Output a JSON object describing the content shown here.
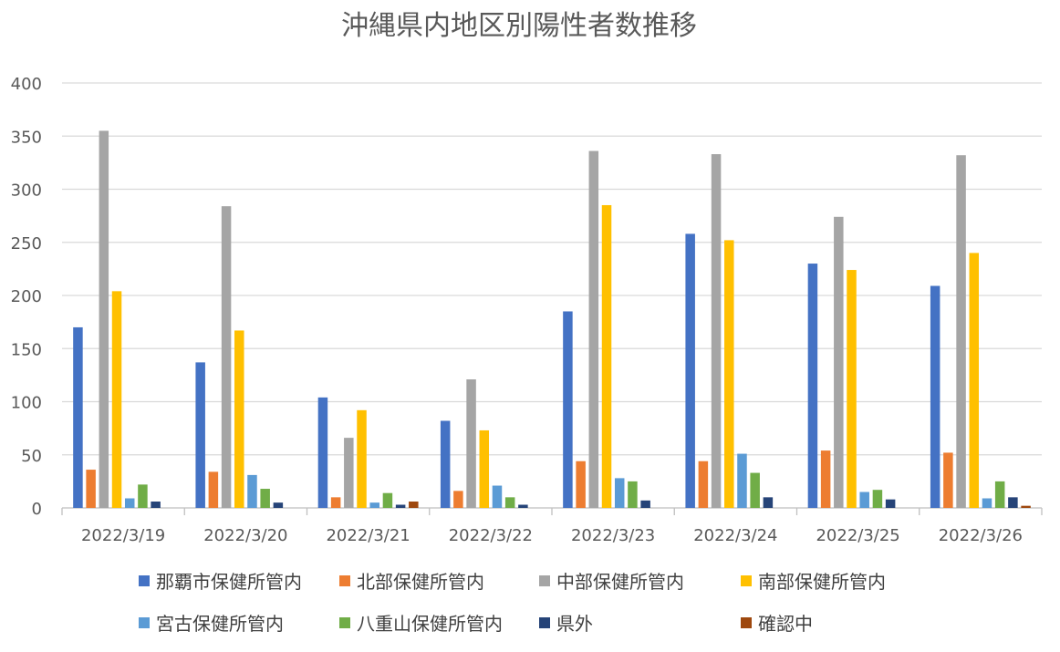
{
  "chart_data": {
    "type": "bar",
    "title": "沖縄県内地区別陽性者数推移",
    "xlabel": "",
    "ylabel": "",
    "ylim": [
      0,
      400
    ],
    "yticks": [
      0,
      50,
      100,
      150,
      200,
      250,
      300,
      350,
      400
    ],
    "grid": true,
    "legend_position": "bottom",
    "categories": [
      "2022/3/19",
      "2022/3/20",
      "2022/3/21",
      "2022/3/22",
      "2022/3/23",
      "2022/3/24",
      "2022/3/25",
      "2022/3/26"
    ],
    "series": [
      {
        "name": "那覇市保健所管内",
        "color": "#4472C4",
        "values": [
          170,
          137,
          104,
          82,
          185,
          258,
          230,
          209
        ]
      },
      {
        "name": "北部保健所管内",
        "color": "#ED7D31",
        "values": [
          36,
          34,
          10,
          16,
          44,
          44,
          54,
          52
        ]
      },
      {
        "name": "中部保健所管内",
        "color": "#A5A5A5",
        "values": [
          355,
          284,
          66,
          121,
          336,
          333,
          274,
          332
        ]
      },
      {
        "name": "南部保健所管内",
        "color": "#FFC000",
        "values": [
          204,
          167,
          92,
          73,
          285,
          252,
          224,
          240
        ]
      },
      {
        "name": "宮古保健所管内",
        "color": "#5B9BD5",
        "values": [
          9,
          31,
          5,
          21,
          28,
          51,
          15,
          9
        ]
      },
      {
        "name": "八重山保健所管内",
        "color": "#70AD47",
        "values": [
          22,
          18,
          14,
          10,
          25,
          33,
          17,
          25
        ]
      },
      {
        "name": "県外",
        "color": "#264478",
        "values": [
          6,
          5,
          3,
          3,
          7,
          10,
          8,
          10
        ]
      },
      {
        "name": "確認中",
        "color": "#9E480E",
        "values": [
          0,
          0,
          6,
          0,
          0,
          0,
          0,
          2
        ]
      }
    ]
  }
}
